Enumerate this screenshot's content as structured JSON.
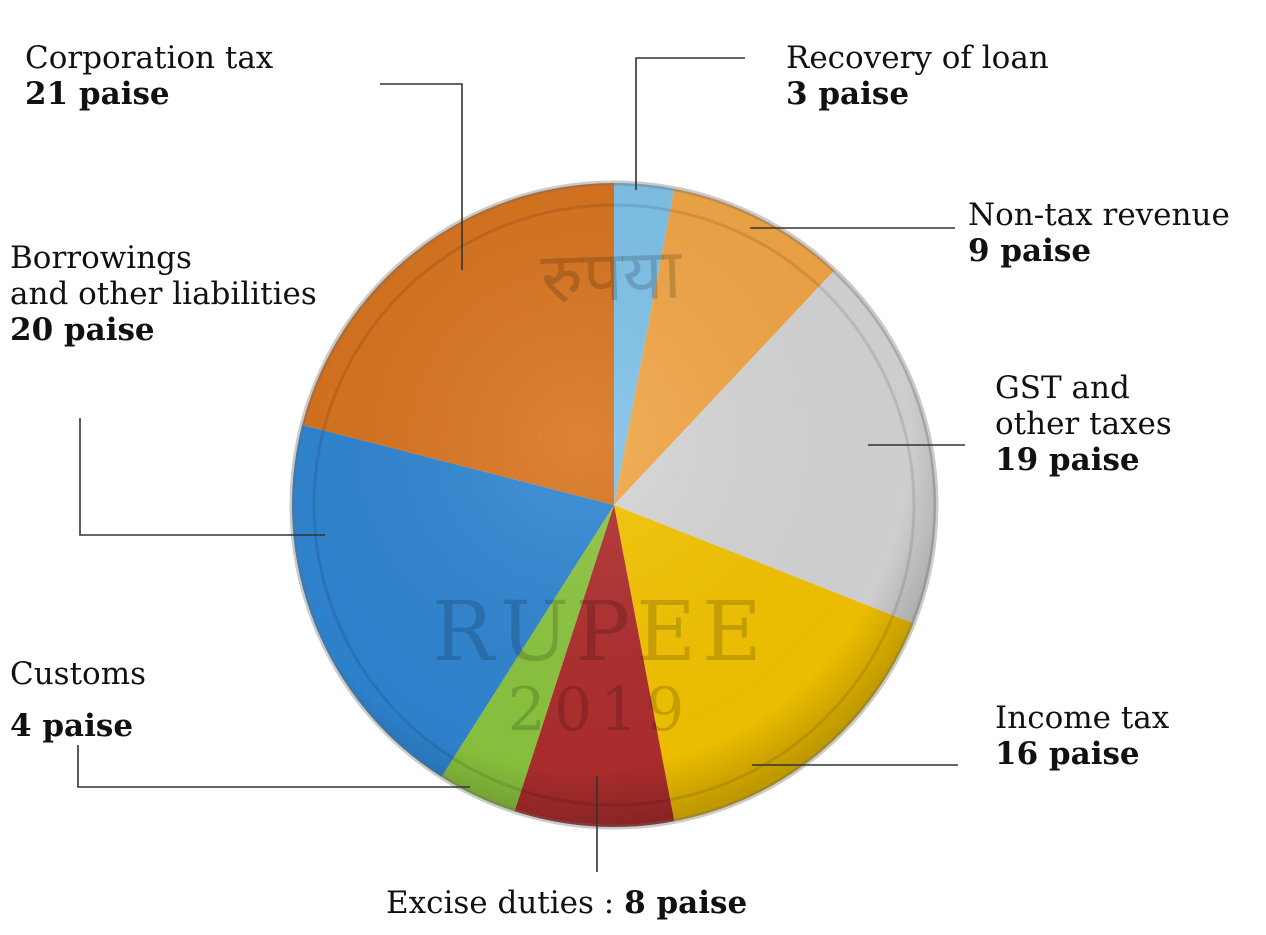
{
  "chart_data": {
    "type": "pie",
    "unit": "paise",
    "slices": [
      {
        "name": "Recovery of loan",
        "value": 3,
        "value_label": "3 paise",
        "color": "#7fc3ea"
      },
      {
        "name": "Non-tax revenue",
        "value": 9,
        "value_label": "9 paise",
        "color": "#f2a646"
      },
      {
        "name": "GST and other taxes",
        "value": 19,
        "value_label": "19 paise",
        "color": "#d6d6d6"
      },
      {
        "name": "Income tax",
        "value": 16,
        "value_label": "16 paise",
        "color": "#f5c400"
      },
      {
        "name": "Excise duties",
        "value": 8,
        "value_label": "8 paise",
        "color": "#b02e2e"
      },
      {
        "name": "Customs",
        "value": 4,
        "value_label": "4 paise",
        "color": "#8cc63f"
      },
      {
        "name": "Borrowings and other liabilities",
        "value": 20,
        "value_label": "20 paise",
        "color": "#2f86d3"
      },
      {
        "name": "Corporation tax",
        "value": 21,
        "value_label": "21 paise",
        "color": "#d9741e"
      }
    ]
  },
  "labels": {
    "recovery": {
      "line1": "Recovery of loan",
      "value": "3 paise"
    },
    "nontax": {
      "line1": "Non-tax revenue",
      "value": "9 paise"
    },
    "gst": {
      "line1": "GST and",
      "line2": "other taxes",
      "value": "19 paise"
    },
    "income": {
      "line1": "Income tax",
      "value": "16 paise"
    },
    "excise": {
      "line1": "Excise duties",
      "sep": " : ",
      "value": "8 paise"
    },
    "customs": {
      "line1": "Customs",
      "value": "4 paise"
    },
    "borrowings": {
      "line1": "Borrowings",
      "line2": "and other liabilities",
      "value": "20 paise"
    },
    "corporation": {
      "line1": "Corporation tax",
      "value": "21 paise"
    }
  },
  "coin": {
    "text_top": "रुपया",
    "text_mid": "RUPEE",
    "text_year": "2019"
  }
}
